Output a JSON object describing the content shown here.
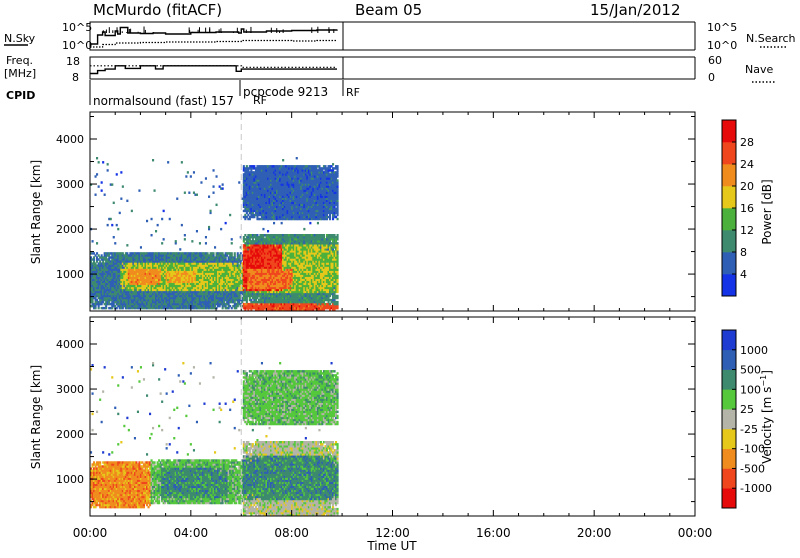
{
  "header": {
    "station": "McMurdo (fitACF)",
    "beam": "Beam 05",
    "date": "15/Jan/2012"
  },
  "top_panels": {
    "nsky_label": "N.Sky",
    "nsearch_label": "N.Search",
    "freq_label_line1": "Freq.",
    "freq_label_line2": "[MHz]",
    "nave_label": "Nave",
    "cpid_label": "CPID",
    "noise_left_ticks": [
      "10^5",
      "10^0"
    ],
    "noise_right_ticks": [
      "10^5",
      "10^0"
    ],
    "freq_left_ticks": [
      "18",
      "8"
    ],
    "nave_right_ticks": [
      "60",
      "0"
    ],
    "cpid_segments": [
      {
        "label": "normalsound (fast) 157",
        "suffix": "RF",
        "start_hour": 0.0
      },
      {
        "label": "pcpcode 9213",
        "suffix": "RF",
        "start_hour": 6.0
      }
    ],
    "noise_sky_series": {
      "x": [
        0,
        0.3,
        0.5,
        0.6,
        1.0,
        1.1,
        1.2,
        1.5,
        2.0,
        2.5,
        3.0,
        4.0,
        5.0,
        5.9,
        6.0,
        6.1,
        7.0,
        8.0,
        9.0,
        9.8
      ],
      "y": [
        1.2,
        3.0,
        3.6,
        2.9,
        3.8,
        3.2,
        4.5,
        3.4,
        3.3,
        3.4,
        3.2,
        3.5,
        3.6,
        3.4,
        4.2,
        3.6,
        3.8,
        3.9,
        4.0,
        4.1
      ]
    },
    "noise_search_series": {
      "x": [
        0,
        0.5,
        1.0,
        2.0,
        3.0,
        4.0,
        5.0,
        6.0,
        7.0,
        8.0,
        9.0,
        9.8
      ],
      "y": [
        0.6,
        1.1,
        1.4,
        1.5,
        1.6,
        1.6,
        1.7,
        1.9,
        1.9,
        1.8,
        1.9,
        2.0
      ]
    },
    "freq_series": {
      "x": [
        0,
        0.3,
        0.6,
        1.0,
        1.4,
        2.0,
        2.6,
        2.9,
        3.2,
        4.0,
        5.0,
        5.8,
        6.0,
        6.3,
        9.8
      ],
      "y": [
        10.5,
        11.8,
        12.5,
        14.0,
        12.8,
        14.0,
        12.6,
        14.0,
        14.0,
        14.0,
        14.0,
        11.5,
        12.5,
        12.5,
        12.5
      ]
    },
    "nave_series": {
      "x": [
        0,
        6.0,
        6.01,
        9.8
      ],
      "y": [
        36,
        36,
        32,
        32
      ]
    }
  },
  "chart_data": [
    {
      "type": "heatmap",
      "title": "",
      "parameter": "Power",
      "xlabel": "Time UT",
      "ylabel": "Slant Range [km]",
      "colorbar_label": "Power [dB]",
      "xlim": [
        0,
        24
      ],
      "ylim": [
        180,
        4600
      ],
      "x_ticks": [
        "00:00",
        "04:00",
        "08:00",
        "12:00",
        "16:00",
        "20:00",
        "00:00"
      ],
      "y_ticks": [
        1000,
        2000,
        3000,
        4000
      ],
      "colorbar_ticks": [
        "4",
        "8",
        "12",
        "16",
        "20",
        "24",
        "28"
      ],
      "colorbar_range": [
        0,
        32
      ],
      "colors": [
        "#1432e6",
        "#2f5fb5",
        "#3d8a6f",
        "#4bb13c",
        "#e6c81a",
        "#f08c1e",
        "#f0461e",
        "#e60a0a"
      ],
      "data_extent_hours": [
        0.0,
        9.8
      ],
      "regions": [
        {
          "t0": 0.0,
          "t1": 6.0,
          "r0": 200,
          "r1": 1450,
          "level": 8
        },
        {
          "t0": 1.2,
          "t1": 6.0,
          "r0": 600,
          "r1": 1250,
          "level": 16
        },
        {
          "t0": 1.5,
          "t1": 2.8,
          "r0": 750,
          "r1": 1100,
          "level": 22
        },
        {
          "t0": 3.0,
          "t1": 4.2,
          "r0": 800,
          "r1": 1050,
          "level": 20
        },
        {
          "t0": 6.0,
          "t1": 9.8,
          "r0": 300,
          "r1": 1850,
          "level": 10
        },
        {
          "t0": 6.0,
          "t1": 9.8,
          "r0": 550,
          "r1": 1650,
          "level": 16
        },
        {
          "t0": 6.0,
          "t1": 7.6,
          "r0": 600,
          "r1": 1650,
          "level": 28
        },
        {
          "t0": 6.2,
          "t1": 8.0,
          "r0": 650,
          "r1": 1100,
          "level": 24
        },
        {
          "t0": 6.0,
          "t1": 9.8,
          "r0": 180,
          "r1": 320,
          "level": 26
        },
        {
          "t0": 6.0,
          "t1": 9.8,
          "r0": 2200,
          "r1": 3400,
          "level": 6
        }
      ]
    },
    {
      "type": "heatmap",
      "title": "",
      "parameter": "Velocity",
      "xlabel": "Time UT",
      "ylabel": "Slant Range [km]",
      "colorbar_label": "Velocity [m s^-1]",
      "xlim": [
        0,
        24
      ],
      "ylim": [
        180,
        4600
      ],
      "x_ticks": [
        "00:00",
        "04:00",
        "08:00",
        "12:00",
        "16:00",
        "20:00",
        "00:00"
      ],
      "y_ticks": [
        1000,
        2000,
        3000,
        4000
      ],
      "colorbar_ticks": [
        "1000",
        "500",
        "100",
        "25",
        "-25",
        "-100",
        "-500",
        "-1000"
      ],
      "colors": [
        "#1e3cd2",
        "#2f5fb5",
        "#3d8a6f",
        "#55c83c",
        "#b4b4a8",
        "#e6c81a",
        "#f08c1e",
        "#f0461e",
        "#e60a0a"
      ],
      "data_extent_hours": [
        0.0,
        9.8
      ],
      "regions": [
        {
          "t0": 0.0,
          "t1": 2.4,
          "r0": 350,
          "r1": 1350,
          "cls": 6
        },
        {
          "t0": 0.6,
          "t1": 2.0,
          "r0": 500,
          "r1": 1100,
          "cls": 6
        },
        {
          "t0": 2.4,
          "t1": 6.0,
          "r0": 450,
          "r1": 1400,
          "cls": 3
        },
        {
          "t0": 2.8,
          "t1": 5.4,
          "r0": 550,
          "r1": 1250,
          "cls": 2
        },
        {
          "t0": 6.0,
          "t1": 9.8,
          "r0": 250,
          "r1": 1800,
          "cls": 4
        },
        {
          "t0": 6.0,
          "t1": 9.8,
          "r0": 500,
          "r1": 1500,
          "cls": 2
        },
        {
          "t0": 6.0,
          "t1": 9.8,
          "r0": 180,
          "r1": 320,
          "cls": 4
        },
        {
          "t0": 6.0,
          "t1": 9.8,
          "r0": 2200,
          "r1": 3400,
          "cls": 3
        }
      ]
    }
  ]
}
